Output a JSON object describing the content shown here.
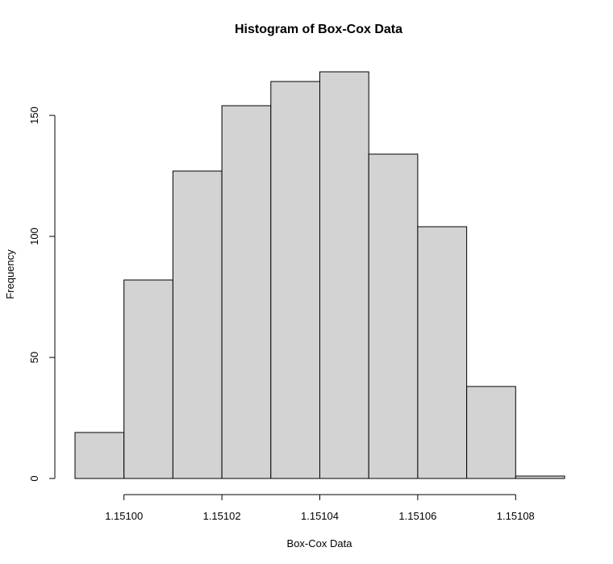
{
  "chart_data": {
    "type": "bar",
    "title": "Histogram of Box-Cox Data",
    "xlabel": "Box-Cox Data",
    "ylabel": "Frequency",
    "bin_edges": [
      1.15099,
      1.151,
      1.15101,
      1.15102,
      1.15103,
      1.15104,
      1.15105,
      1.15106,
      1.15107,
      1.15108,
      1.15109
    ],
    "values": [
      19,
      82,
      127,
      154,
      164,
      168,
      134,
      104,
      38,
      1
    ],
    "x_ticks": [
      {
        "value": 1.151,
        "label": "1.15100"
      },
      {
        "value": 1.15102,
        "label": "1.15102"
      },
      {
        "value": 1.15104,
        "label": "1.15104"
      },
      {
        "value": 1.15106,
        "label": "1.15106"
      },
      {
        "value": 1.15108,
        "label": "1.15108"
      }
    ],
    "y_ticks": [
      {
        "value": 0,
        "label": "0"
      },
      {
        "value": 50,
        "label": "50"
      },
      {
        "value": 100,
        "label": "100"
      },
      {
        "value": 150,
        "label": "150"
      }
    ],
    "xlim": [
      1.15099,
      1.15109
    ],
    "ylim": [
      0,
      168
    ],
    "bar_color": "#d3d3d3",
    "grid": false,
    "legend": "none"
  }
}
